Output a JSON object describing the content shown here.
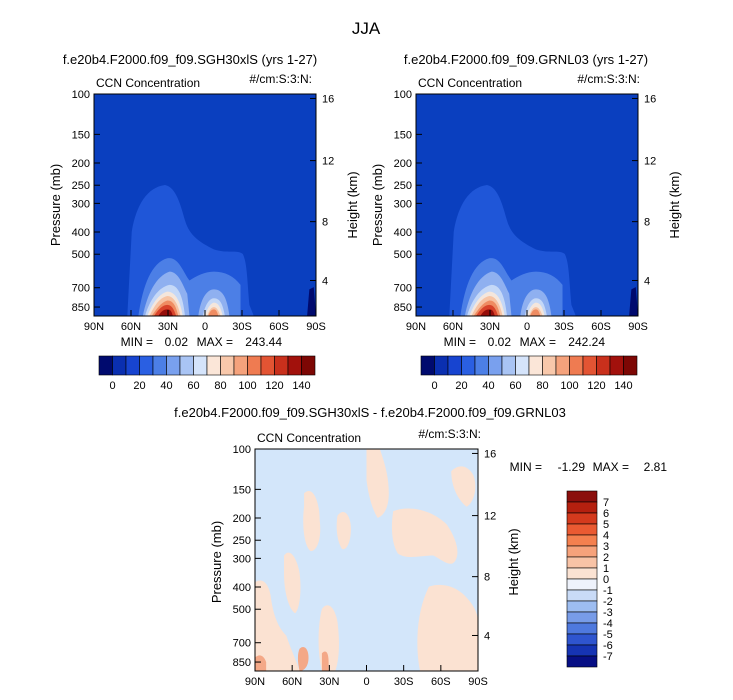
{
  "title": "JJA",
  "colors": {
    "base": "#0a3fbf",
    "shallow_blue": "#1f56d8",
    "mid_blue": "#4c7fe6",
    "light_blue": "#8fb0f0",
    "pale_blue": "#c5d8f7",
    "near_white": "#f4e6dc",
    "light_orange": "#f7c3a3",
    "orange": "#ef8c62",
    "red": "#d8432a",
    "dark_red": "#960d0a",
    "diff_neutral": "#d3e6fa",
    "diff_pos": "#fbe2d2",
    "diff_pos_strong": "#f4a887"
  },
  "chart_data": [
    {
      "type": "heatmap",
      "subtitle": "f.e20b4.F2000.f09_f09.SGH30xlS (yrs 1-27)",
      "left_label": "CCN Concentration",
      "right_label": "#/cm:S:3:N:",
      "ylabel": "Pressure (mb)",
      "y2label": "Height (km)",
      "xticks": [
        "90N",
        "60N",
        "30N",
        "0",
        "30S",
        "60S",
        "90S"
      ],
      "yticks": [
        "100",
        "150",
        "200",
        "250",
        "300",
        "400",
        "500",
        "700",
        "850"
      ],
      "y2ticks": [
        "16",
        "12",
        "8",
        "4"
      ],
      "min_label": "MIN =",
      "min_value": "0.02",
      "max_label": "MAX =",
      "max_value": "243.44",
      "colorbar": {
        "labels": [
          "0",
          "20",
          "40",
          "60",
          "80",
          "100",
          "120",
          "140"
        ],
        "colors": [
          "#000a6e",
          "#0a2fb0",
          "#1744d0",
          "#2a5fe2",
          "#4c7fe6",
          "#79a0ee",
          "#a9c4f4",
          "#d5e4fb",
          "#fbe6d8",
          "#f8c8ab",
          "#f5a27c",
          "#ef7b51",
          "#e35433",
          "#c9301c",
          "#a2110c",
          "#7d0704"
        ]
      }
    },
    {
      "type": "heatmap",
      "subtitle": "f.e20b4.F2000.f09_f09.GRNL03 (yrs 1-27)",
      "left_label": "CCN Concentration",
      "right_label": "#/cm:S:3:N:",
      "ylabel": "Pressure (mb)",
      "y2label": "Height (km)",
      "xticks": [
        "90N",
        "60N",
        "30N",
        "0",
        "30S",
        "60S",
        "90S"
      ],
      "yticks": [
        "100",
        "150",
        "200",
        "250",
        "300",
        "400",
        "500",
        "700",
        "850"
      ],
      "y2ticks": [
        "16",
        "12",
        "8",
        "4"
      ],
      "min_label": "MIN =",
      "min_value": "0.02",
      "max_label": "MAX =",
      "max_value": "242.24",
      "colorbar": {
        "labels": [
          "0",
          "20",
          "40",
          "60",
          "80",
          "100",
          "120",
          "140"
        ],
        "colors": [
          "#000a6e",
          "#0a2fb0",
          "#1744d0",
          "#2a5fe2",
          "#4c7fe6",
          "#79a0ee",
          "#a9c4f4",
          "#d5e4fb",
          "#fbe6d8",
          "#f8c8ab",
          "#f5a27c",
          "#ef7b51",
          "#e35433",
          "#c9301c",
          "#a2110c",
          "#7d0704"
        ]
      }
    },
    {
      "type": "heatmap",
      "subtitle": "f.e20b4.F2000.f09_f09.SGH30xlS - f.e20b4.F2000.f09_f09.GRNL03",
      "left_label": "CCN Concentration",
      "right_label": "#/cm:S:3:N:",
      "ylabel": "Pressure (mb)",
      "y2label": "Height (km)",
      "xticks": [
        "90N",
        "60N",
        "30N",
        "0",
        "30S",
        "60S",
        "90S"
      ],
      "yticks": [
        "100",
        "150",
        "200",
        "250",
        "300",
        "400",
        "500",
        "700",
        "850"
      ],
      "y2ticks": [
        "16",
        "12",
        "8",
        "4"
      ],
      "min_label": "MIN =",
      "min_value": "-1.29",
      "max_label": "MAX =",
      "max_value": "2.81",
      "colorbar": {
        "labels": [
          "7",
          "6",
          "5",
          "4",
          "3",
          "2",
          "1",
          "0",
          "-1",
          "-2",
          "-3",
          "-4",
          "-5",
          "-6",
          "-7"
        ],
        "colors": [
          "#8b0f0d",
          "#b5200f",
          "#d43a1d",
          "#ea5a32",
          "#f4804f",
          "#f6a27b",
          "#f8c3a6",
          "#fbe3d3",
          "#eef2fb",
          "#c9dbf7",
          "#9dbdf1",
          "#789ce8",
          "#4f79de",
          "#2f55cf",
          "#1634b4",
          "#070f85"
        ]
      }
    }
  ]
}
